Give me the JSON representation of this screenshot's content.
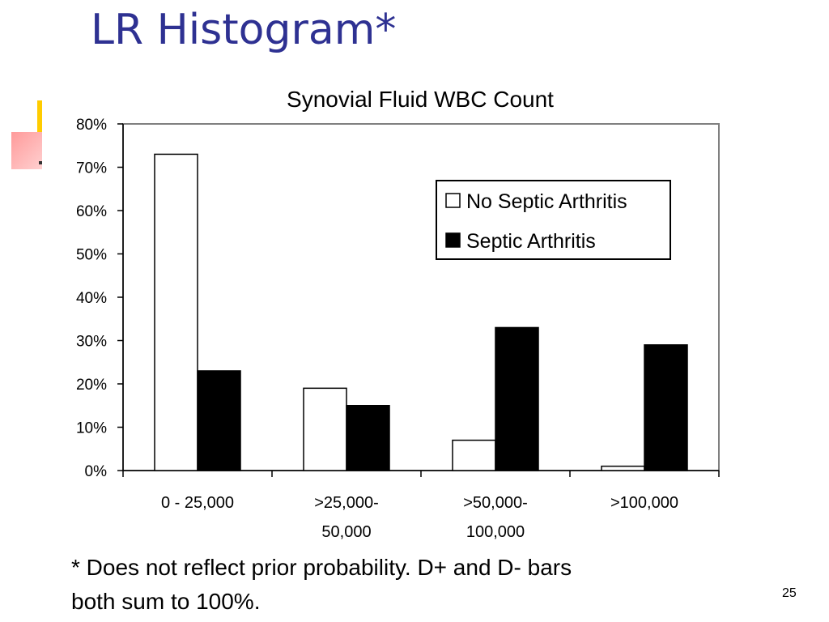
{
  "slide": {
    "title": "LR Histogram*",
    "footnote_line1": "* Does not reflect prior probability.  D+ and D- bars",
    "footnote_line2": "both sum to 100%.",
    "page_number": "25"
  },
  "colors": {
    "title": "#2e3192",
    "accent_bar": "#ffcc00",
    "accent_square": "#ff9a9a",
    "no_septic_fill": "#ffffff",
    "septic_fill": "#000000"
  },
  "chart_data": {
    "type": "bar",
    "title": "Synovial Fluid WBC Count",
    "xlabel": "",
    "ylabel": "",
    "categories": [
      [
        "0 - 25,000"
      ],
      [
        ">25,000-",
        "50,000"
      ],
      [
        ">50,000-",
        "100,000"
      ],
      [
        ">100,000"
      ]
    ],
    "series": [
      {
        "name": "No Septic Arthritis",
        "values": [
          73,
          19,
          7,
          1
        ],
        "color": "#ffffff"
      },
      {
        "name": "Septic Arthritis",
        "values": [
          23,
          15,
          33,
          29
        ],
        "color": "#000000"
      }
    ],
    "ylim": [
      0,
      80
    ],
    "yticks": [
      "0%",
      "10%",
      "20%",
      "30%",
      "40%",
      "50%",
      "60%",
      "70%",
      "80%"
    ],
    "grid": false,
    "legend_position": "top-right"
  }
}
